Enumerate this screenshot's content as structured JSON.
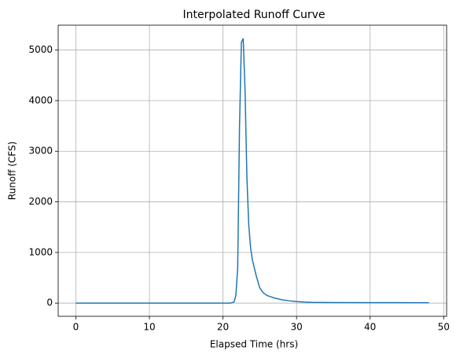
{
  "chart_data": {
    "type": "line",
    "title": "Interpolated Runoff Curve",
    "xlabel": "Elapsed Time (hrs)",
    "ylabel": "Runoff (CFS)",
    "x": [
      0,
      5,
      10,
      15,
      20,
      21,
      21.5,
      21.75,
      22,
      22.25,
      22.5,
      22.75,
      23,
      23.25,
      23.5,
      23.75,
      24,
      24.5,
      25,
      25.5,
      26,
      27,
      28,
      29,
      30,
      31,
      32,
      35,
      40,
      48
    ],
    "series": [
      {
        "name": "Runoff",
        "color": "#1f77b4",
        "values": [
          0,
          0,
          0,
          0,
          0,
          0,
          20,
          150,
          700,
          3500,
          5150,
          5230,
          4200,
          2500,
          1550,
          1100,
          850,
          550,
          300,
          200,
          150,
          100,
          65,
          45,
          30,
          20,
          15,
          12,
          10,
          8
        ]
      }
    ],
    "xlim": [
      -2.4,
      50.4
    ],
    "ylim": [
      -261,
      5491
    ],
    "xticks": [
      0,
      10,
      20,
      30,
      40,
      50
    ],
    "yticks": [
      0,
      1000,
      2000,
      3000,
      4000,
      5000
    ],
    "grid": true
  }
}
